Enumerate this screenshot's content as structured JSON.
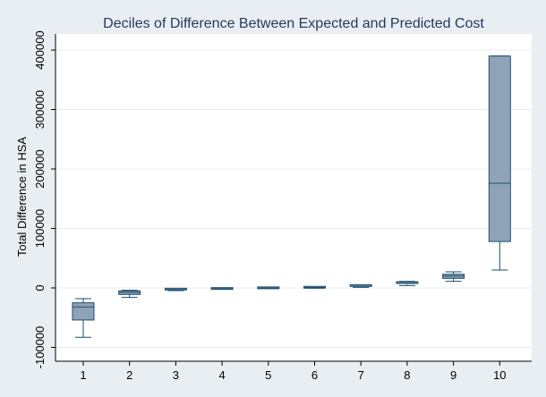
{
  "chart_data": {
    "type": "boxplot",
    "title": "Deciles of Difference Between Expected and Predicted Cost",
    "ylabel": "Total Difference in HSA",
    "xlabel": "",
    "categories": [
      "1",
      "2",
      "3",
      "4",
      "5",
      "6",
      "7",
      "8",
      "9",
      "10"
    ],
    "yticks": [
      -100000,
      0,
      100000,
      200000,
      300000,
      400000
    ],
    "ytick_labels": [
      "-100000",
      "0",
      "100000",
      "200000",
      "300000",
      "400000"
    ],
    "ylim": [
      -126000,
      420000
    ],
    "grid": true,
    "boxes": [
      {
        "category": "1",
        "whisker_low": -83000,
        "q1": -54000,
        "median": -32000,
        "q3": -25000,
        "whisker_high": -18000
      },
      {
        "category": "2",
        "whisker_low": -16000,
        "q1": -11000,
        "median": -7500,
        "q3": -5000,
        "whisker_high": -4000
      },
      {
        "category": "3",
        "whisker_low": -4500,
        "q1": -3500,
        "median": -2800,
        "q3": -2000,
        "whisker_high": -1500
      },
      {
        "category": "4",
        "whisker_low": -2200,
        "q1": -1800,
        "median": -1400,
        "q3": -1000,
        "whisker_high": -700
      },
      {
        "category": "5",
        "whisker_low": -600,
        "q1": -400,
        "median": -150,
        "q3": 200,
        "whisker_high": 400
      },
      {
        "category": "6",
        "whisker_low": -300,
        "q1": 300,
        "median": 700,
        "q3": 1100,
        "whisker_high": 1400
      },
      {
        "category": "7",
        "whisker_low": 1000,
        "q1": 2000,
        "median": 3000,
        "q3": 4000,
        "whisker_high": 5000
      },
      {
        "category": "8",
        "whisker_low": 4000,
        "q1": 6000,
        "median": 8000,
        "q3": 9000,
        "whisker_high": 11000
      },
      {
        "category": "9",
        "whisker_low": 11000,
        "q1": 16000,
        "median": 20000,
        "q3": 23000,
        "whisker_high": 27000
      },
      {
        "category": "10",
        "whisker_low": 30000,
        "q1": 78000,
        "median": 176000,
        "q3": 390000,
        "whisker_high": 390000
      }
    ],
    "colors": {
      "background": "#e9eef3",
      "plot_area": "#ffffff",
      "box_fill": "#8fa3b8",
      "box_stroke": "#1f4e6b",
      "grid": "#e8ecef",
      "axis": "#000000",
      "title": "#1f3a5a",
      "text": "#000000"
    }
  }
}
